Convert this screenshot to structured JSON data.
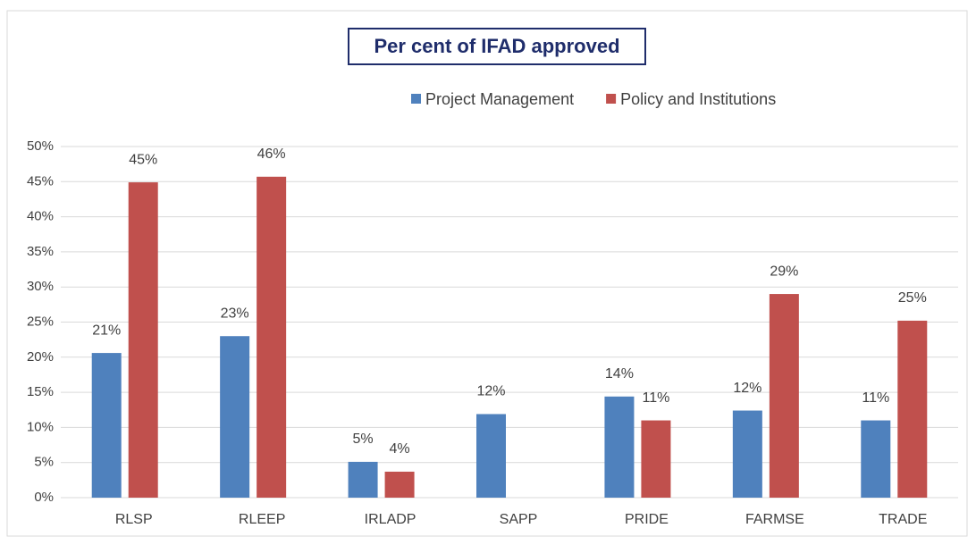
{
  "chart_data": {
    "type": "bar",
    "title": "Per cent of IFAD approved",
    "categories": [
      "RLSP",
      "RLEEP",
      "IRLADP",
      "SAPP",
      "PRIDE",
      "FARMSE",
      "TRADE"
    ],
    "series": [
      {
        "name": "Project Management",
        "color": "#4f81bd",
        "values": [
          20.6,
          23.0,
          5.1,
          11.9,
          14.4,
          12.4,
          11.0
        ],
        "value_labels": [
          "21%",
          "23%",
          "5%",
          "12%",
          "14%",
          "12%",
          "11%"
        ]
      },
      {
        "name": "Policy and Institutions",
        "color": "#c0504d",
        "values": [
          44.9,
          45.7,
          3.7,
          null,
          11.0,
          29.0,
          25.2
        ],
        "value_labels": [
          "45%",
          "46%",
          "4%",
          null,
          "11%",
          "29%",
          "25%"
        ]
      }
    ],
    "ylim": [
      0,
      50
    ],
    "yticks": [
      {
        "value": 0,
        "label": "0%"
      },
      {
        "value": 5,
        "label": "5%"
      },
      {
        "value": 10,
        "label": "10%"
      },
      {
        "value": 15,
        "label": "15%"
      },
      {
        "value": 20,
        "label": "20%"
      },
      {
        "value": 25,
        "label": "25%"
      },
      {
        "value": 30,
        "label": "30%"
      },
      {
        "value": 35,
        "label": "35%"
      },
      {
        "value": 40,
        "label": "40%"
      },
      {
        "value": 45,
        "label": "45%"
      },
      {
        "value": 50,
        "label": "50%"
      }
    ],
    "grid": true,
    "legend": "top"
  }
}
